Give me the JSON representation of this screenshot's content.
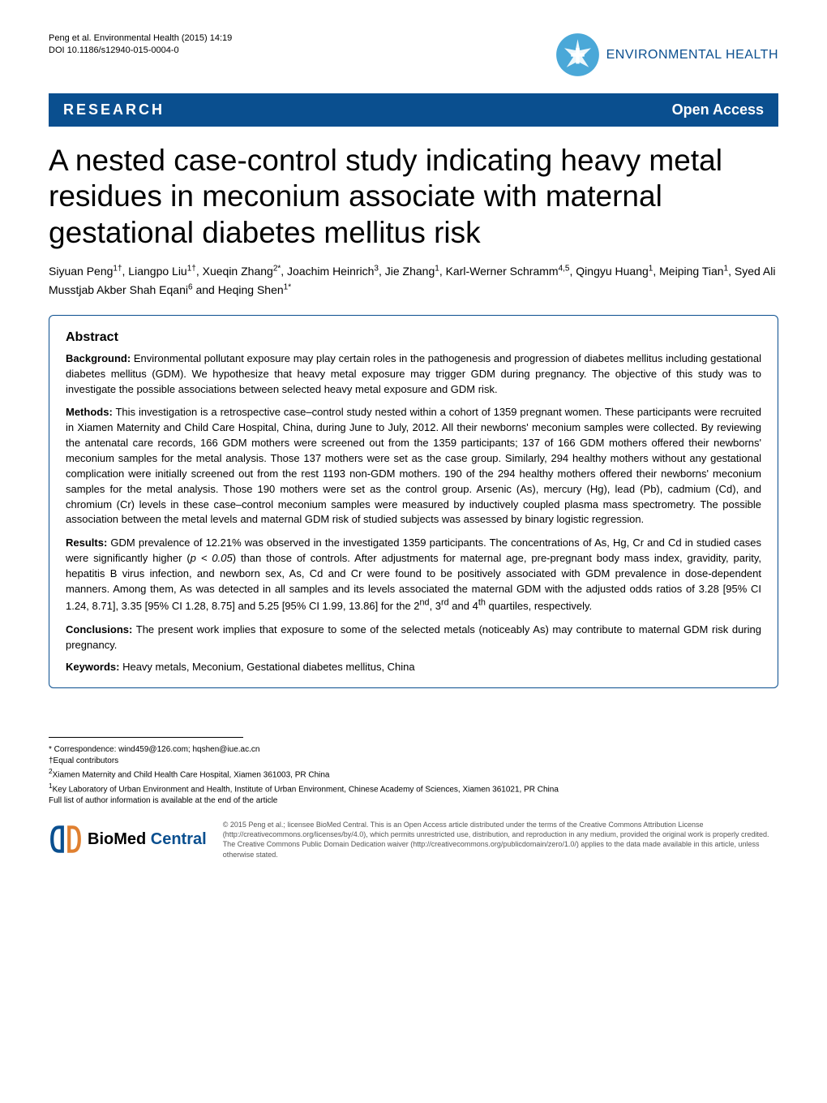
{
  "header": {
    "citation": "Peng et al. Environmental Health  (2015) 14:19",
    "doi": "DOI 10.1186/s12940-015-0004-0",
    "journal_name": "ENVIRONMENTAL HEALTH",
    "logo_bg": "#4aa8d8",
    "logo_cross": "#ffffff"
  },
  "banner": {
    "left": "RESEARCH",
    "right": "Open Access",
    "bg_color": "#0a4f8f",
    "text_color": "#ffffff"
  },
  "title": "A nested case-control study indicating heavy metal residues in meconium associate with maternal gestational diabetes mellitus risk",
  "authors_html": "Siyuan Peng<sup>1†</sup>, Liangpo Liu<sup>1†</sup>, Xueqin Zhang<sup>2*</sup>, Joachim Heinrich<sup>3</sup>, Jie Zhang<sup>1</sup>, Karl-Werner Schramm<sup>4,5</sup>, Qingyu Huang<sup>1</sup>, Meiping Tian<sup>1</sup>, Syed Ali Musstjab Akber Shah Eqani<sup>6</sup> and Heqing Shen<sup>1*</sup>",
  "abstract": {
    "heading": "Abstract",
    "background_label": "Background:",
    "background_text": " Environmental pollutant exposure may play certain roles in the pathogenesis and progression of diabetes mellitus including gestational diabetes mellitus (GDM). We hypothesize that heavy metal exposure may trigger GDM during pregnancy. The objective of this study was to investigate the possible associations between selected heavy metal exposure and GDM risk.",
    "methods_label": "Methods:",
    "methods_text": " This investigation is a retrospective case–control study nested within a cohort of 1359 pregnant women. These participants were recruited in Xiamen Maternity and Child Care Hospital, China, during June to July, 2012. All their newborns' meconium samples were collected. By reviewing the antenatal care records, 166 GDM mothers were screened out from the 1359 participants; 137 of 166 GDM mothers offered their newborns' meconium samples for the metal analysis. Those 137 mothers were set as the case group. Similarly, 294 healthy mothers without any gestational complication were initially screened out from the rest 1193 non-GDM mothers. 190 of the 294 healthy mothers offered their newborns' meconium samples for the metal analysis. Those 190 mothers were set as the control group. Arsenic (As), mercury (Hg), lead (Pb), cadmium (Cd), and chromium (Cr) levels in these case–control meconium samples were measured by inductively coupled plasma mass spectrometry. The possible association between the metal levels and maternal GDM risk of studied subjects was assessed by binary logistic regression.",
    "results_label": "Results:",
    "results_text_html": " GDM prevalence of 12.21% was observed in the investigated 1359 participants. The concentrations of As, Hg, Cr and Cd in studied cases were significantly higher (<i>p &lt; 0.05</i>) than those of controls. After adjustments for maternal age, pre-pregnant body mass index, gravidity, parity, hepatitis B virus infection, and newborn sex, As, Cd and Cr were found to be positively associated with GDM prevalence in dose-dependent manners. Among them, As was detected in all samples and its levels associated the maternal GDM with the adjusted odds ratios of 3.28 [95% CI 1.24, 8.71], 3.35 [95% CI 1.28, 8.75] and 5.25 [95% CI 1.99, 13.86] for the 2<sup>nd</sup>, 3<sup>rd</sup> and 4<sup>th</sup> quartiles, respectively.",
    "conclusions_label": "Conclusions:",
    "conclusions_text": " The present work implies that exposure to some of the selected metals (noticeably As) may contribute to maternal GDM risk during pregnancy.",
    "keywords_label": "Keywords:",
    "keywords_text": " Heavy metals, Meconium, Gestational diabetes mellitus, China",
    "border_color": "#0a4f8f"
  },
  "correspondence": {
    "line1": "* Correspondence: wind459@126.com; hqshen@iue.ac.cn",
    "line2": "†Equal contributors",
    "line3": "2Xiamen Maternity and Child Health Care Hospital, Xiamen 361003, PR China",
    "line4": "1Key Laboratory of Urban Environment and Health, Institute of Urban Environment, Chinese Academy of Sciences, Xiamen 361021, PR China",
    "line5": "Full list of author information is available at the end of the article"
  },
  "footer": {
    "bmc_bio": "BioMed",
    "bmc_central": " Central",
    "bmc_logo_color": "#0a4f8f",
    "license_text": "© 2015 Peng et al.; licensee BioMed Central. This is an Open Access article distributed under the terms of the Creative Commons Attribution License (http://creativecommons.org/licenses/by/4.0), which permits unrestricted use, distribution, and reproduction in any medium, provided the original work is properly credited. The Creative Commons Public Domain Dedication waiver (http://creativecommons.org/publicdomain/zero/1.0/) applies to the data made available in this article, unless otherwise stated."
  }
}
